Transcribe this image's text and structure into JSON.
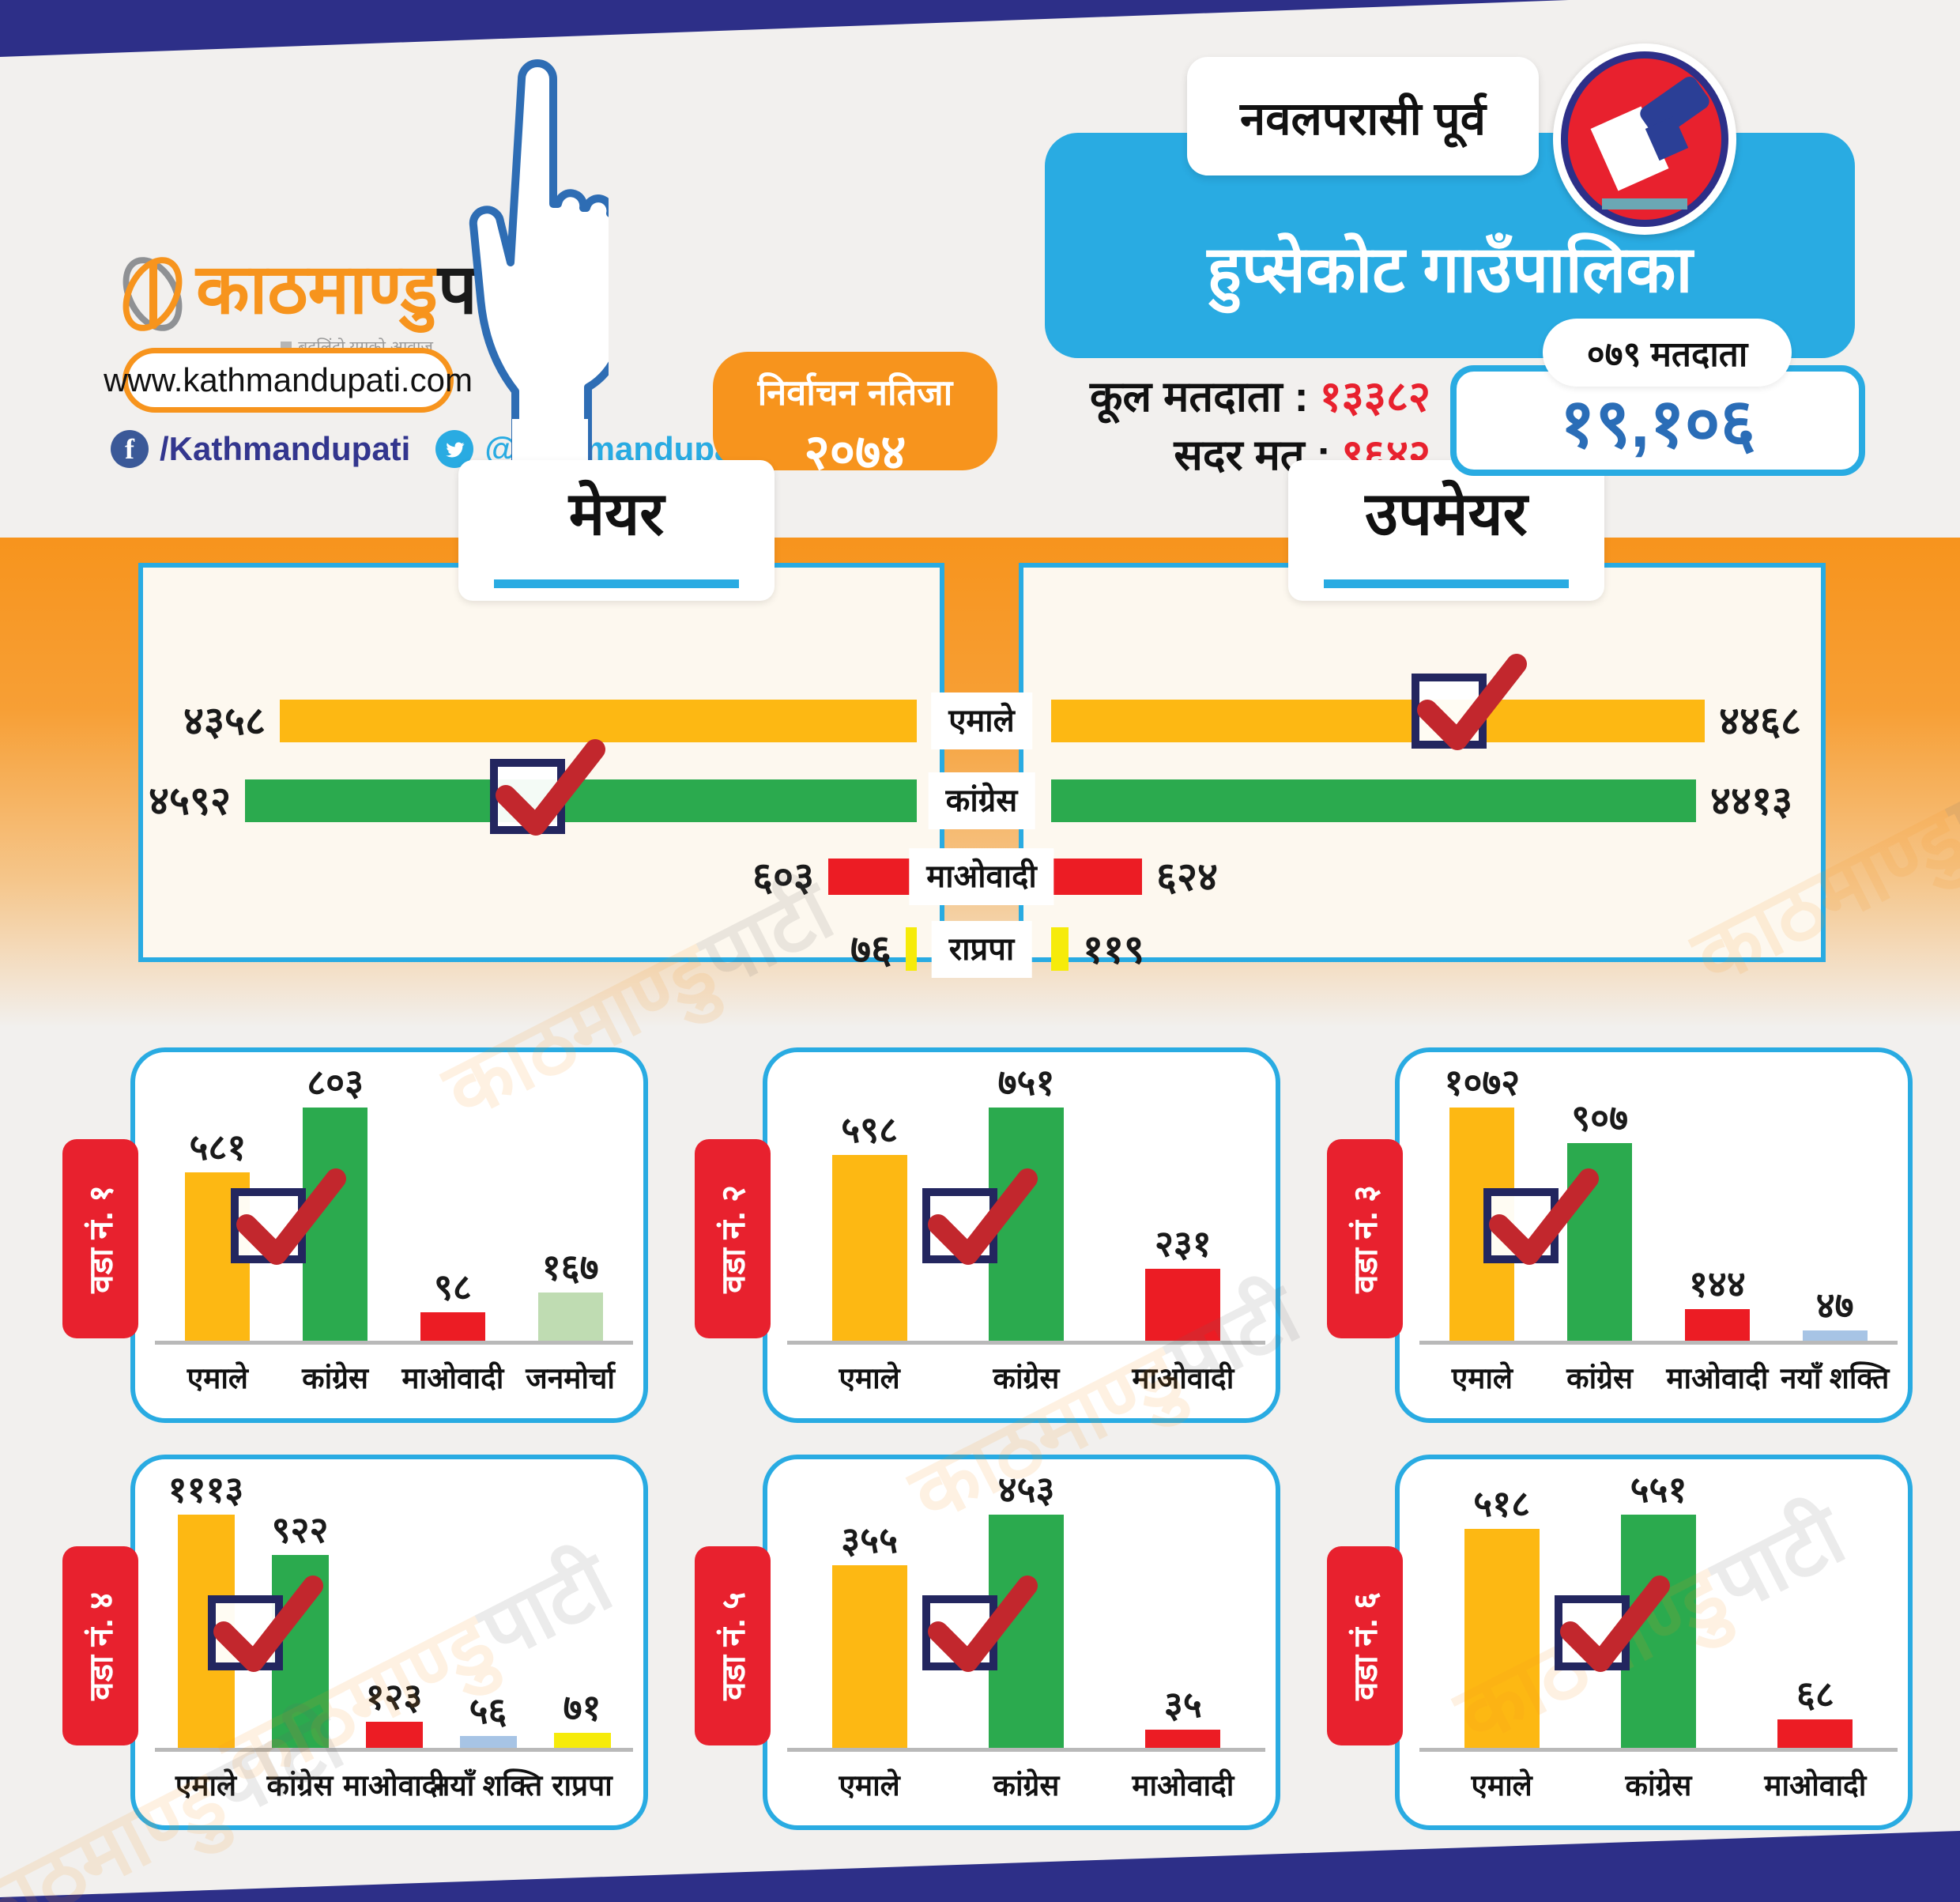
{
  "header": {
    "district": "नवलपरासी पूर्व",
    "municipality": "हुप्सेकोट गाउँपालिका"
  },
  "brand": {
    "logo_part1": "काठमाण्डु",
    "logo_part2": "पाटी",
    "tagline": "बदलिंदो युगको आवाज",
    "website": "www.kathmandupati.com",
    "facebook": "/Kathmandupati",
    "facebook_icon_letter": "f",
    "twitter": "@kathmandupati1"
  },
  "badge": {
    "line1": "निर्वाचन नतिजा",
    "line2": "२०७४"
  },
  "stats": {
    "total_voters_label": "कूल मतदाता :",
    "total_voters_value": "१३३८२",
    "valid_votes_label": "सदर मत :",
    "valid_votes_value": "९६४२",
    "bubble_label": "०७९ मतदाता",
    "highlight_value": "१९,१०६"
  },
  "colors": {
    "navy": "#2d2f88",
    "accent_blue": "#29abe2",
    "orange": "#f7941d",
    "red": "#e8212e",
    "highlight_number_blue": "#2a6db7",
    "checkbox_navy": "#23265f",
    "check_red": "#c2272d",
    "parties": {
      "एमाले": "#fdb813",
      "कांग्रेस": "#2baa4e",
      "माओवादी": "#ec1c24",
      "राप्रपा": "#f6eb0a",
      "जनमोर्चा": "#bfdcb2",
      "नयाँ शक्ति": "#a7c4e5"
    }
  },
  "chart_data": [
    {
      "type": "bar",
      "orientation": "horizontal",
      "title": "मेयर",
      "categories": [
        "एमाले",
        "कांग्रेस",
        "माओवादी",
        "राप्रपा"
      ],
      "values": [
        4358,
        4592,
        603,
        76
      ],
      "value_labels": [
        "४३५८",
        "४५९२",
        "६०३",
        "७६"
      ],
      "winner_index": 1
    },
    {
      "type": "bar",
      "orientation": "horizontal",
      "title": "उपमेयर",
      "categories": [
        "एमाले",
        "कांग्रेस",
        "माओवादी",
        "राप्रपा"
      ],
      "values": [
        4468,
        4413,
        624,
        119
      ],
      "value_labels": [
        "४४६८",
        "४४१३",
        "६२४",
        "११९"
      ],
      "winner_index": 0
    },
    {
      "type": "bar",
      "title": "वडा नं. १",
      "categories": [
        "एमाले",
        "कांग्रेस",
        "माओवादी",
        "जनमोर्चा"
      ],
      "values": [
        581,
        803,
        98,
        167
      ],
      "value_labels": [
        "५८१",
        "८०३",
        "९८",
        "१६७"
      ],
      "winner_index": 1
    },
    {
      "type": "bar",
      "title": "वडा नं. २",
      "categories": [
        "एमाले",
        "कांग्रेस",
        "माओवादी"
      ],
      "values": [
        598,
        751,
        231
      ],
      "value_labels": [
        "५९८",
        "७५१",
        "२३१"
      ],
      "winner_index": 1
    },
    {
      "type": "bar",
      "title": "वडा नं. ३",
      "categories": [
        "एमाले",
        "कांग्रेस",
        "माओवादी",
        "नयाँ शक्ति"
      ],
      "values": [
        1072,
        907,
        144,
        47
      ],
      "value_labels": [
        "१०७२",
        "९०७",
        "१४४",
        "४७"
      ],
      "winner_index": 0
    },
    {
      "type": "bar",
      "title": "वडा नं. ४",
      "categories": [
        "एमाले",
        "कांग्रेस",
        "माओवादी",
        "नयाँ शक्ति",
        "राप्रपा"
      ],
      "values": [
        1113,
        922,
        123,
        56,
        71
      ],
      "value_labels": [
        "१११३",
        "९२२",
        "१२३",
        "५६",
        "७१"
      ],
      "winner_index": 0
    },
    {
      "type": "bar",
      "title": "वडा नं. ५",
      "categories": [
        "एमाले",
        "कांग्रेस",
        "माओवादी"
      ],
      "values": [
        355,
        453,
        35
      ],
      "value_labels": [
        "३५५",
        "४५३",
        "३५"
      ],
      "winner_index": 1
    },
    {
      "type": "bar",
      "title": "वडा नं. ६",
      "categories": [
        "एमाले",
        "कांग्रेस",
        "माओवादी"
      ],
      "values": [
        518,
        551,
        68
      ],
      "value_labels": [
        "५१८",
        "५५१",
        "६८"
      ],
      "winner_index": 1
    }
  ]
}
